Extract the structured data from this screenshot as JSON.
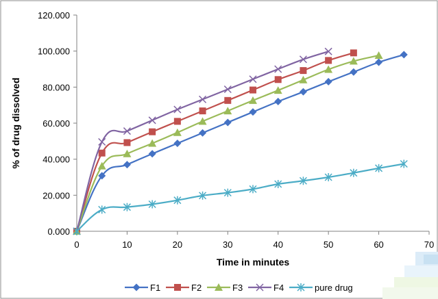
{
  "chart_data": {
    "type": "line",
    "title": "",
    "xlabel": "Time in minutes",
    "ylabel": "% of drug dissolved",
    "xlim": [
      0,
      70
    ],
    "ylim": [
      0,
      120
    ],
    "x_ticks": [
      "0",
      "10",
      "20",
      "30",
      "40",
      "50",
      "60",
      "70"
    ],
    "y_ticks": [
      "0.000",
      "20.000",
      "40.000",
      "60.000",
      "80.000",
      "100.000",
      "120.000"
    ],
    "grid": false,
    "legend_position": "bottom",
    "series": [
      {
        "name": "F1",
        "color": "#4472C4",
        "marker": "diamond",
        "x": [
          0,
          5,
          10,
          15,
          20,
          25,
          30,
          35,
          40,
          45,
          50,
          55,
          60,
          65
        ],
        "y": [
          0,
          30.8,
          37.0,
          43.0,
          48.8,
          54.6,
          60.4,
          66.2,
          72.0,
          77.4,
          83.0,
          88.4,
          93.8,
          98.0
        ]
      },
      {
        "name": "F2",
        "color": "#C0504D",
        "marker": "square",
        "x": [
          0,
          5,
          10,
          15,
          20,
          25,
          30,
          35,
          40,
          45,
          50,
          55
        ],
        "y": [
          0,
          43.4,
          49.2,
          55.2,
          61.0,
          66.8,
          72.6,
          78.4,
          84.2,
          89.2,
          94.8,
          99.0
        ]
      },
      {
        "name": "F3",
        "color": "#9BBB59",
        "marker": "triangle",
        "x": [
          0,
          5,
          10,
          15,
          20,
          25,
          30,
          35,
          40,
          45,
          50,
          55,
          60
        ],
        "y": [
          0,
          36.2,
          43.0,
          48.8,
          54.8,
          61.0,
          66.8,
          72.6,
          78.2,
          84.0,
          89.8,
          94.4,
          97.6
        ]
      },
      {
        "name": "F4",
        "color": "#8064A2",
        "marker": "x",
        "x": [
          0,
          5,
          10,
          15,
          20,
          25,
          30,
          35,
          40,
          45,
          50
        ],
        "y": [
          0,
          49.6,
          55.6,
          61.6,
          67.6,
          73.2,
          78.8,
          84.4,
          90.0,
          95.4,
          99.8
        ]
      },
      {
        "name": "pure drug",
        "color": "#4BACC6",
        "marker": "star",
        "x": [
          0,
          5,
          10,
          15,
          20,
          25,
          30,
          35,
          40,
          45,
          50,
          55,
          60,
          65
        ],
        "y": [
          0,
          12.0,
          13.4,
          15.0,
          17.2,
          19.8,
          21.4,
          23.4,
          26.2,
          28.0,
          30.0,
          32.4,
          35.0,
          37.4
        ]
      }
    ]
  }
}
